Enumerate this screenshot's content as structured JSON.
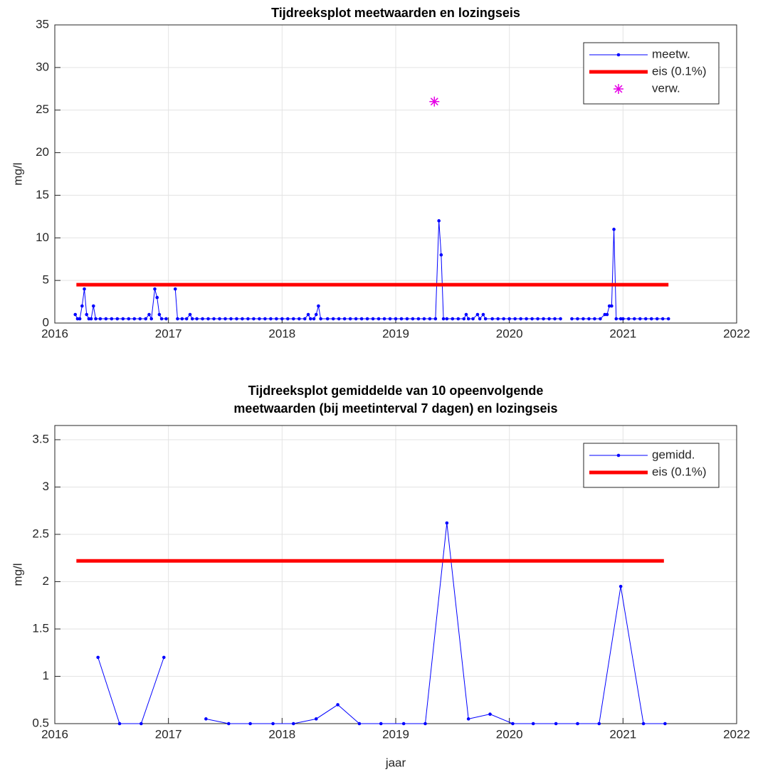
{
  "chart_data": [
    {
      "type": "line",
      "title": "Tijdreeksplot meetwaarden en lozingseis",
      "ylabel": "mg/l",
      "xlim": [
        2016,
        2022
      ],
      "xticks": [
        2016,
        2017,
        2018,
        2019,
        2020,
        2021,
        2022
      ],
      "ylim": [
        0,
        35
      ],
      "yticks": [
        0,
        5,
        10,
        15,
        20,
        25,
        30,
        35
      ],
      "grid": true,
      "legend": "upper right",
      "series": [
        {
          "name": "meetw.",
          "color": "#0000ff",
          "style": "line-marker",
          "x": [
            2016.18,
            2016.2,
            2016.22,
            2016.24,
            2016.26,
            2016.28,
            2016.3,
            2016.32,
            2016.34,
            2016.36,
            2016.4,
            2016.45,
            2016.5,
            2016.55,
            2016.6,
            2016.65,
            2016.7,
            2016.75,
            2016.8,
            2016.83,
            2016.85,
            2016.88,
            2016.9,
            2016.92,
            2016.94,
            2016.98,
            2017.0,
            2017.06,
            2017.08,
            2017.12,
            2017.16,
            2017.19,
            2017.21,
            2017.25,
            2017.3,
            2017.35,
            2017.4,
            2017.45,
            2017.5,
            2017.55,
            2017.6,
            2017.65,
            2017.7,
            2017.75,
            2017.8,
            2017.85,
            2017.9,
            2017.95,
            2018.0,
            2018.05,
            2018.1,
            2018.15,
            2018.2,
            2018.23,
            2018.25,
            2018.28,
            2018.3,
            2018.32,
            2018.34,
            2018.4,
            2018.45,
            2018.5,
            2018.55,
            2018.6,
            2018.65,
            2018.7,
            2018.75,
            2018.8,
            2018.85,
            2018.9,
            2018.95,
            2019.0,
            2019.05,
            2019.1,
            2019.15,
            2019.2,
            2019.25,
            2019.3,
            2019.35,
            2019.38,
            2019.4,
            2019.42,
            2019.45,
            2019.5,
            2019.55,
            2019.6,
            2019.62,
            2019.64,
            2019.68,
            2019.72,
            2019.74,
            2019.77,
            2019.79,
            2019.85,
            2019.9,
            2019.95,
            2020.0,
            2020.05,
            2020.1,
            2020.15,
            2020.2,
            2020.25,
            2020.3,
            2020.35,
            2020.4,
            2020.45,
            2020.5,
            2020.55,
            2020.6,
            2020.65,
            2020.7,
            2020.75,
            2020.8,
            2020.84,
            2020.86,
            2020.88,
            2020.9,
            2020.92,
            2020.94,
            2020.98,
            2021.0,
            2021.05,
            2021.1,
            2021.15,
            2021.2,
            2021.25,
            2021.3,
            2021.35,
            2021.4
          ],
          "values": [
            1,
            0.5,
            0.5,
            2,
            4,
            1,
            0.5,
            0.5,
            2,
            0.5,
            0.5,
            0.5,
            0.5,
            0.5,
            0.5,
            0.5,
            0.5,
            0.5,
            0.5,
            1,
            0.5,
            4,
            3,
            1,
            0.5,
            0.5,
            null,
            4,
            0.5,
            0.5,
            0.5,
            1,
            0.5,
            0.5,
            0.5,
            0.5,
            0.5,
            0.5,
            0.5,
            0.5,
            0.5,
            0.5,
            0.5,
            0.5,
            0.5,
            0.5,
            0.5,
            0.5,
            0.5,
            0.5,
            0.5,
            0.5,
            0.5,
            1,
            0.5,
            0.5,
            1,
            2,
            0.5,
            0.5,
            0.5,
            0.5,
            0.5,
            0.5,
            0.5,
            0.5,
            0.5,
            0.5,
            0.5,
            0.5,
            0.5,
            0.5,
            0.5,
            0.5,
            0.5,
            0.5,
            0.5,
            0.5,
            0.5,
            12,
            8,
            0.5,
            0.5,
            0.5,
            0.5,
            0.5,
            1,
            0.5,
            0.5,
            1,
            0.5,
            1,
            0.5,
            0.5,
            0.5,
            0.5,
            0.5,
            0.5,
            0.5,
            0.5,
            0.5,
            0.5,
            0.5,
            0.5,
            0.5,
            0.5,
            null,
            0.5,
            0.5,
            0.5,
            0.5,
            0.5,
            0.5,
            1,
            1,
            2,
            2,
            11,
            0.5,
            0.5,
            0.5,
            0.5,
            0.5,
            0.5,
            0.5,
            0.5,
            0.5,
            0.5,
            0.5
          ]
        },
        {
          "name": "eis (0.1%)",
          "color": "#ff0000",
          "style": "thick-line",
          "x": [
            2016.19,
            2021.4
          ],
          "values": [
            4.5,
            4.5
          ]
        },
        {
          "name": "verw.",
          "color": "#e600e6",
          "style": "star",
          "x": [
            2019.34
          ],
          "values": [
            26
          ]
        }
      ]
    },
    {
      "type": "line",
      "title": [
        "Tijdreeksplot gemiddelde van 10 opeenvolgende",
        "meetwaarden (bij meetinterval 7 dagen) en lozingseis"
      ],
      "ylabel": "mg/l",
      "xlabel": "jaar",
      "xlim": [
        2016,
        2022
      ],
      "xticks": [
        2016,
        2017,
        2018,
        2019,
        2020,
        2021,
        2022
      ],
      "ylim": [
        0.5,
        3.65
      ],
      "yticks": [
        0.5,
        1,
        1.5,
        2,
        2.5,
        3,
        3.5
      ],
      "grid": true,
      "legend": "upper right",
      "series": [
        {
          "name": "gemidd.",
          "color": "#0000ff",
          "style": "line-marker",
          "x": [
            2016.38,
            2016.57,
            2016.76,
            2016.96,
            2017.15,
            2017.33,
            2017.53,
            2017.72,
            2017.92,
            2018.1,
            2018.3,
            2018.49,
            2018.68,
            2018.87,
            2019.07,
            2019.26,
            2019.45,
            2019.64,
            2019.83,
            2020.03,
            2020.21,
            2020.41,
            2020.6,
            2020.79,
            2020.98,
            2021.18,
            2021.37
          ],
          "values": [
            1.2,
            0.5,
            0.5,
            1.2,
            null,
            0.55,
            0.5,
            0.5,
            0.5,
            0.5,
            0.55,
            0.7,
            0.5,
            0.5,
            0.5,
            0.5,
            2.62,
            0.55,
            0.6,
            0.5,
            0.5,
            0.5,
            0.5,
            0.5,
            1.95,
            0.5,
            0.5
          ]
        },
        {
          "name": "eis (0.1%)",
          "color": "#ff0000",
          "style": "thick-line",
          "x": [
            2016.19,
            2021.36
          ],
          "values": [
            2.22,
            2.22
          ]
        }
      ]
    }
  ]
}
